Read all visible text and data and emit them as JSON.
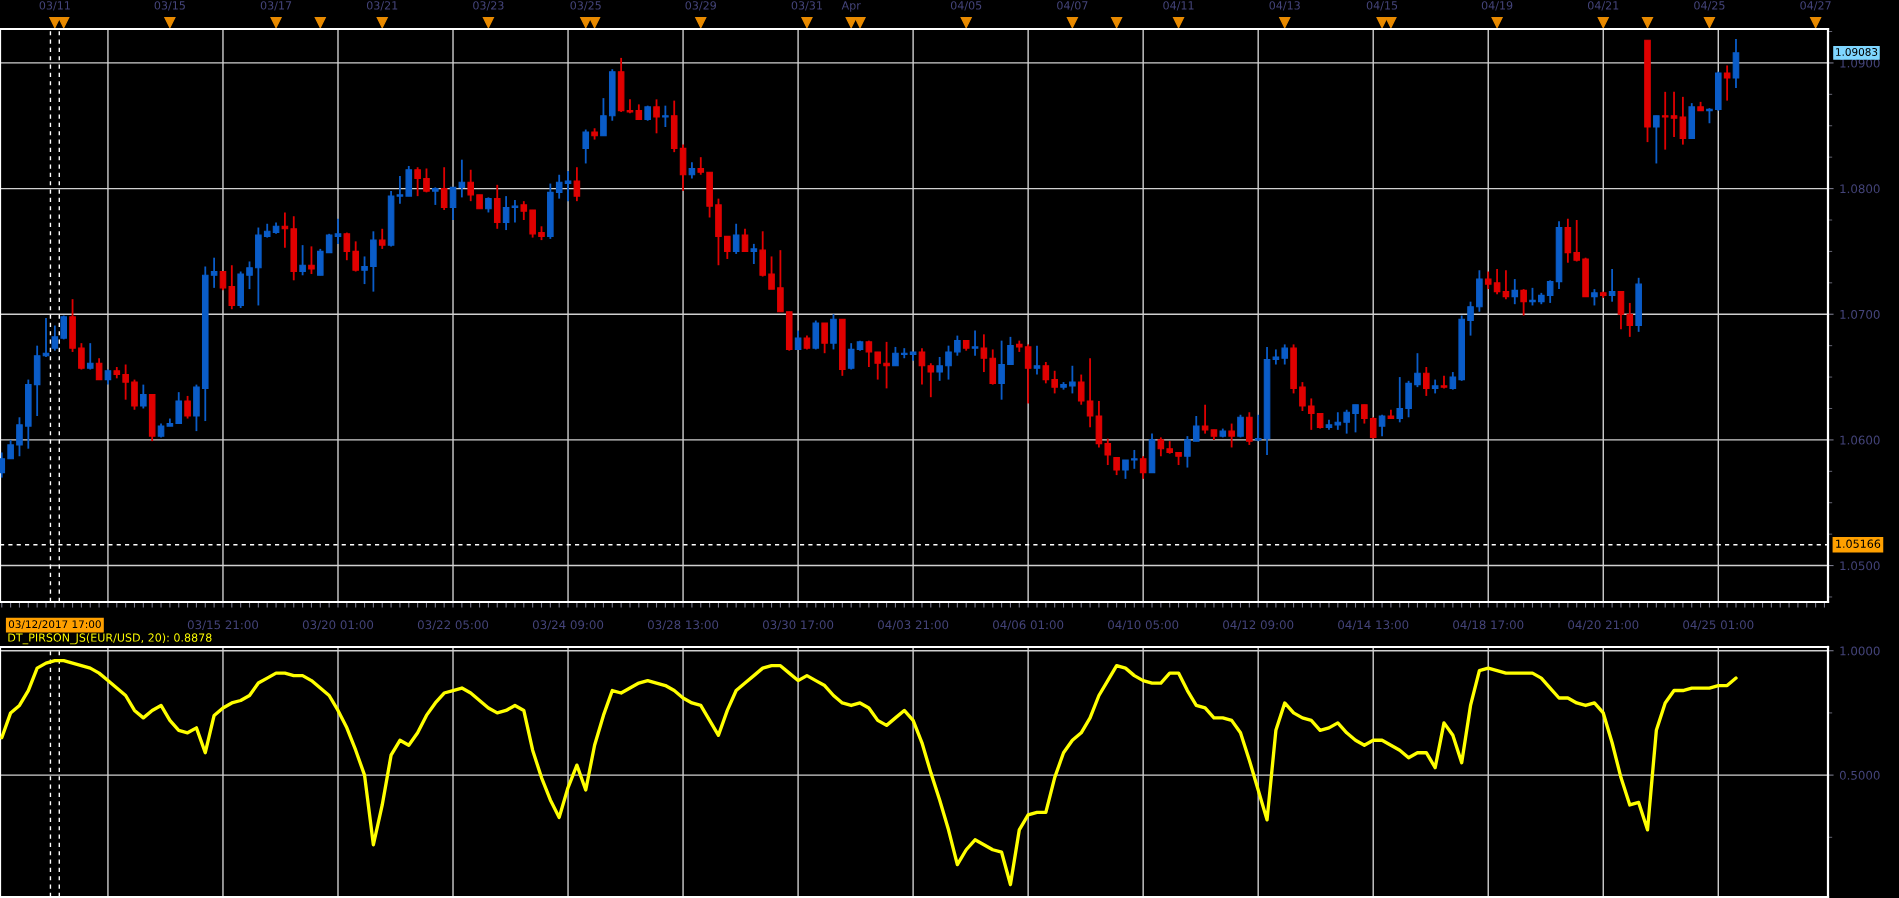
{
  "chart_data": [
    {
      "type": "other",
      "annotations": [
        "03/11",
        "03/15",
        "03/17",
        "03/21",
        "03/23",
        "03/25",
        "03/29",
        "03/31",
        "Apr",
        "04/05",
        "04/07",
        "04/11",
        "04/13",
        "04/15",
        "04/19",
        "04/21",
        "04/25",
        "04/27"
      ]
    },
    {
      "type": "candlestick",
      "categories": [
        null,
        null,
        null,
        null,
        null,
        null,
        "03/12/2017 17:00",
        null,
        null,
        null,
        null,
        null,
        null,
        null,
        null,
        null,
        null,
        null,
        null,
        null,
        null,
        null,
        null,
        null,
        null,
        "03/15 21:00",
        null,
        null,
        null,
        null,
        null,
        null,
        null,
        null,
        null,
        null,
        null,
        null,
        "03/20 01:00",
        null,
        null,
        null,
        null,
        null,
        null,
        null,
        null,
        null,
        null,
        null,
        null,
        "03/22 05:00",
        null,
        null,
        null,
        null,
        null,
        null,
        null,
        null,
        null,
        null,
        null,
        null,
        "03/24 09:00",
        null,
        null,
        null,
        null,
        null,
        null,
        null,
        null,
        null,
        null,
        null,
        null,
        "03/28 13:00",
        null,
        null,
        null,
        null,
        null,
        null,
        null,
        null,
        null,
        null,
        null,
        null,
        "03/30 17:00",
        null,
        null,
        null,
        null,
        null,
        null,
        null,
        null,
        null,
        null,
        null,
        null,
        "04/03 21:00",
        null,
        null,
        null,
        null,
        null,
        null,
        null,
        null,
        null,
        null,
        null,
        null,
        "04/06 01:00",
        null,
        null,
        null,
        null,
        null,
        null,
        null,
        null,
        null,
        null,
        null,
        null,
        "04/10 05:00",
        null,
        null,
        null,
        null,
        null,
        null,
        null,
        null,
        null,
        null,
        null,
        null,
        "04/12 09:00",
        null,
        null,
        null,
        null,
        null,
        null,
        null,
        null,
        null,
        null,
        null,
        null,
        "04/14 13:00",
        null,
        null,
        null,
        null,
        null,
        null,
        null,
        null,
        null,
        null,
        null,
        null,
        "04/18 17:00",
        null,
        null,
        null,
        null,
        null,
        null,
        null,
        null,
        null,
        null,
        null,
        null,
        "04/20 21:00",
        null,
        null,
        null,
        null,
        null,
        null,
        null,
        null,
        null,
        null,
        null,
        null,
        "04/25 01:00",
        null,
        null,
        null,
        null,
        null,
        null,
        null,
        null,
        null,
        null,
        null,
        null
      ],
      "ohlc": [
        [
          1.0574,
          1.059,
          1.057,
          1.0585
        ],
        [
          1.0585,
          1.06,
          1.0585,
          1.0596
        ],
        [
          1.0596,
          1.0618,
          1.0587,
          1.0612
        ],
        [
          1.0611,
          1.0648,
          1.0593,
          1.0644
        ],
        [
          1.0644,
          1.0675,
          1.0619,
          1.0667
        ],
        [
          1.0667,
          1.0697,
          1.0666,
          1.0669
        ],
        [
          1.0673,
          1.0691,
          1.0671,
          1.0682
        ],
        [
          1.0681,
          1.0699,
          1.068,
          1.0698
        ],
        [
          1.0698,
          1.0712,
          1.067,
          1.0673
        ],
        [
          1.0673,
          1.0677,
          1.0656,
          1.0657
        ],
        [
          1.0657,
          1.0677,
          1.0656,
          1.0661
        ],
        [
          1.0661,
          1.0665,
          1.0648,
          1.0648
        ],
        [
          1.0648,
          1.0656,
          1.0644,
          1.0655
        ],
        [
          1.0655,
          1.0658,
          1.0649,
          1.0652
        ],
        [
          1.0652,
          1.066,
          1.0632,
          1.0646
        ],
        [
          1.0646,
          1.0648,
          1.0624,
          1.0627
        ],
        [
          1.0627,
          1.0644,
          1.0625,
          1.0636
        ],
        [
          1.0636,
          1.0636,
          1.0599,
          1.0603
        ],
        [
          1.0603,
          1.0613,
          1.0602,
          1.0611
        ],
        [
          1.0611,
          1.0617,
          1.0611,
          1.0613
        ],
        [
          1.0613,
          1.0638,
          1.0613,
          1.0631
        ],
        [
          1.0631,
          1.0635,
          1.0617,
          1.0619
        ],
        [
          1.0619,
          1.0644,
          1.0607,
          1.0642
        ],
        [
          1.0641,
          1.0738,
          1.0615,
          1.0731
        ],
        [
          1.0731,
          1.0745,
          1.0721,
          1.0734
        ],
        [
          1.0734,
          1.0734,
          1.0719,
          1.0721
        ],
        [
          1.0722,
          1.0739,
          1.0704,
          1.0707
        ],
        [
          1.0707,
          1.0734,
          1.0705,
          1.0732
        ],
        [
          1.0731,
          1.0742,
          1.072,
          1.0737
        ],
        [
          1.0737,
          1.0769,
          1.0707,
          1.0763
        ],
        [
          1.0762,
          1.0772,
          1.0761,
          1.0766
        ],
        [
          1.0765,
          1.0773,
          1.0764,
          1.077
        ],
        [
          1.077,
          1.0781,
          1.0753,
          1.0768
        ],
        [
          1.0768,
          1.0778,
          1.0727,
          1.0734
        ],
        [
          1.0734,
          1.0755,
          1.0731,
          1.0739
        ],
        [
          1.0739,
          1.0754,
          1.0732,
          1.0736
        ],
        [
          1.0731,
          1.0752,
          1.0731,
          1.075
        ],
        [
          1.0749,
          1.0764,
          1.0749,
          1.0763
        ],
        [
          1.0762,
          1.0776,
          1.0756,
          1.0764
        ],
        [
          1.0764,
          1.0765,
          1.0743,
          1.075
        ],
        [
          1.075,
          1.0758,
          1.0734,
          1.0735
        ],
        [
          1.0735,
          1.0746,
          1.0724,
          1.0738
        ],
        [
          1.0738,
          1.0766,
          1.0718,
          1.0759
        ],
        [
          1.0759,
          1.0768,
          1.0752,
          1.0755
        ],
        [
          1.0755,
          1.0798,
          1.0754,
          1.0794
        ],
        [
          1.0794,
          1.081,
          1.0788,
          1.0795
        ],
        [
          1.0794,
          1.0818,
          1.0794,
          1.0815
        ],
        [
          1.0815,
          1.0817,
          1.0794,
          1.0808
        ],
        [
          1.0808,
          1.0816,
          1.0797,
          1.0798
        ],
        [
          1.0798,
          1.0801,
          1.0787,
          1.08
        ],
        [
          1.08,
          1.0817,
          1.0783,
          1.0785
        ],
        [
          1.0785,
          1.0801,
          1.0775,
          1.0801
        ],
        [
          1.0801,
          1.0823,
          1.0793,
          1.0805
        ],
        [
          1.0805,
          1.0815,
          1.079,
          1.0795
        ],
        [
          1.0795,
          1.0795,
          1.0784,
          1.0784
        ],
        [
          1.0784,
          1.0793,
          1.0781,
          1.0792
        ],
        [
          1.0792,
          1.0803,
          1.0768,
          1.0773
        ],
        [
          1.0773,
          1.0794,
          1.0767,
          1.0785
        ],
        [
          1.0785,
          1.0791,
          1.0773,
          1.0786
        ],
        [
          1.0787,
          1.079,
          1.0775,
          1.0782
        ],
        [
          1.0783,
          1.0783,
          1.0761,
          1.0764
        ],
        [
          1.0765,
          1.077,
          1.0759,
          1.0762
        ],
        [
          1.0762,
          1.0804,
          1.076,
          1.0797
        ],
        [
          1.0797,
          1.0811,
          1.0792,
          1.0805
        ],
        [
          1.0804,
          1.0814,
          1.079,
          1.0806
        ],
        [
          1.0806,
          1.0817,
          1.079,
          1.0794
        ],
        [
          1.0832,
          1.0847,
          1.082,
          1.0845
        ],
        [
          1.0845,
          1.0848,
          1.0839,
          1.0842
        ],
        [
          1.0842,
          1.0872,
          1.0842,
          1.0858
        ],
        [
          1.0858,
          1.0895,
          1.0854,
          1.0893
        ],
        [
          1.0893,
          1.0904,
          1.0861,
          1.0862
        ],
        [
          1.0862,
          1.0871,
          1.086,
          1.0861
        ],
        [
          1.0862,
          1.0867,
          1.0855,
          1.0855
        ],
        [
          1.0855,
          1.0866,
          1.0854,
          1.0865
        ],
        [
          1.0865,
          1.0871,
          1.0844,
          1.0857
        ],
        [
          1.0857,
          1.0866,
          1.0849,
          1.0858
        ],
        [
          1.0858,
          1.087,
          1.0829,
          1.0832
        ],
        [
          1.0832,
          1.0835,
          1.0798,
          1.0811
        ],
        [
          1.0811,
          1.0821,
          1.0808,
          1.0816
        ],
        [
          1.0816,
          1.0825,
          1.0811,
          1.0813
        ],
        [
          1.0813,
          1.0813,
          1.0777,
          1.0786
        ],
        [
          1.0787,
          1.0792,
          1.0739,
          1.0762
        ],
        [
          1.0762,
          1.0762,
          1.0744,
          1.075
        ],
        [
          1.075,
          1.0772,
          1.0748,
          1.0763
        ],
        [
          1.0763,
          1.0768,
          1.075,
          1.075
        ],
        [
          1.075,
          1.0756,
          1.074,
          1.0752
        ],
        [
          1.0751,
          1.0766,
          1.073,
          1.0731
        ],
        [
          1.0732,
          1.0746,
          1.072,
          1.072
        ],
        [
          1.0721,
          1.0751,
          1.0702,
          1.0702
        ],
        [
          1.0702,
          1.0702,
          1.0671,
          1.0672
        ],
        [
          1.0672,
          1.0687,
          1.0672,
          1.0681
        ],
        [
          1.0681,
          1.0683,
          1.0672,
          1.0673
        ],
        [
          1.0673,
          1.0695,
          1.0672,
          1.0693
        ],
        [
          1.0693,
          1.0693,
          1.0669,
          1.0677
        ],
        [
          1.0677,
          1.07,
          1.0672,
          1.0696
        ],
        [
          1.0696,
          1.0696,
          1.0651,
          1.0656
        ],
        [
          1.0657,
          1.0677,
          1.0656,
          1.0672
        ],
        [
          1.0672,
          1.0679,
          1.0671,
          1.0678
        ],
        [
          1.0678,
          1.0679,
          1.0658,
          1.067
        ],
        [
          1.067,
          1.067,
          1.0648,
          1.0661
        ],
        [
          1.0661,
          1.0678,
          1.0641,
          1.0659
        ],
        [
          1.0659,
          1.0674,
          1.0659,
          1.0669
        ],
        [
          1.0668,
          1.0673,
          1.0665,
          1.0669
        ],
        [
          1.0668,
          1.067,
          1.0663,
          1.067
        ],
        [
          1.067,
          1.0673,
          1.0644,
          1.0659
        ],
        [
          1.0659,
          1.0661,
          1.0634,
          1.0654
        ],
        [
          1.0654,
          1.0666,
          1.0647,
          1.0659
        ],
        [
          1.0659,
          1.0675,
          1.0648,
          1.067
        ],
        [
          1.067,
          1.0683,
          1.0667,
          1.0679
        ],
        [
          1.0679,
          1.0679,
          1.0671,
          1.0673
        ],
        [
          1.0673,
          1.0687,
          1.0667,
          1.0674
        ],
        [
          1.0673,
          1.0684,
          1.0654,
          1.0665
        ],
        [
          1.0665,
          1.0672,
          1.0644,
          1.0645
        ],
        [
          1.0645,
          1.0679,
          1.0632,
          1.066
        ],
        [
          1.066,
          1.0682,
          1.066,
          1.0675
        ],
        [
          1.0676,
          1.0679,
          1.067,
          1.0674
        ],
        [
          1.0674,
          1.0676,
          1.0629,
          1.0657
        ],
        [
          1.0657,
          1.0675,
          1.0652,
          1.0659
        ],
        [
          1.0659,
          1.0662,
          1.0645,
          1.0648
        ],
        [
          1.0648,
          1.0655,
          1.0637,
          1.0642
        ],
        [
          1.0642,
          1.0646,
          1.064,
          1.0644
        ],
        [
          1.0643,
          1.0659,
          1.0637,
          1.0646
        ],
        [
          1.0646,
          1.0652,
          1.0628,
          1.0631
        ],
        [
          1.0631,
          1.0665,
          1.061,
          1.0619
        ],
        [
          1.0619,
          1.0631,
          1.0594,
          1.0597
        ],
        [
          1.0597,
          1.0601,
          1.058,
          1.0588
        ],
        [
          1.0586,
          1.0586,
          1.0572,
          1.0576
        ],
        [
          1.0576,
          1.0584,
          1.0569,
          1.0584
        ],
        [
          1.0584,
          1.0592,
          1.0577,
          1.0585
        ],
        [
          1.0585,
          1.0587,
          1.0569,
          1.0574
        ],
        [
          1.0574,
          1.0605,
          1.0574,
          1.06
        ],
        [
          1.06,
          1.0602,
          1.0587,
          1.0593
        ],
        [
          1.0593,
          1.0599,
          1.0589,
          1.059
        ],
        [
          1.059,
          1.059,
          1.058,
          1.0587
        ],
        [
          1.0587,
          1.0603,
          1.0578,
          1.06
        ],
        [
          1.0599,
          1.0619,
          1.0599,
          1.0611
        ],
        [
          1.0611,
          1.0628,
          1.0605,
          1.0608
        ],
        [
          1.0608,
          1.0608,
          1.06,
          1.0603
        ],
        [
          1.0603,
          1.0609,
          1.0602,
          1.0607
        ],
        [
          1.0607,
          1.0613,
          1.0594,
          1.0603
        ],
        [
          1.0603,
          1.062,
          1.0602,
          1.0618
        ],
        [
          1.0618,
          1.0622,
          1.0596,
          1.0599
        ],
        [
          1.06,
          1.062,
          1.0599,
          1.0601
        ],
        [
          1.0601,
          1.0674,
          1.0588,
          1.0664
        ],
        [
          1.0664,
          1.0672,
          1.066,
          1.0666
        ],
        [
          1.0665,
          1.0676,
          1.066,
          1.0673
        ],
        [
          1.0673,
          1.0676,
          1.0637,
          1.0641
        ],
        [
          1.0642,
          1.0646,
          1.0623,
          1.0627
        ],
        [
          1.0627,
          1.0633,
          1.0608,
          1.0621
        ],
        [
          1.0621,
          1.0621,
          1.0609,
          1.061
        ],
        [
          1.061,
          1.0616,
          1.0608,
          1.0612
        ],
        [
          1.0612,
          1.0622,
          1.0608,
          1.0614
        ],
        [
          1.0614,
          1.0624,
          1.0605,
          1.0622
        ],
        [
          1.0621,
          1.0628,
          1.0606,
          1.0628
        ],
        [
          1.0628,
          1.0628,
          1.0613,
          1.0617
        ],
        [
          1.0617,
          1.0618,
          1.0601,
          1.0602
        ],
        [
          1.0611,
          1.062,
          1.0603,
          1.0619
        ],
        [
          1.0619,
          1.0624,
          1.0617,
          1.0617
        ],
        [
          1.0617,
          1.065,
          1.0614,
          1.0625
        ],
        [
          1.0625,
          1.0647,
          1.0618,
          1.0645
        ],
        [
          1.0644,
          1.0669,
          1.0642,
          1.0653
        ],
        [
          1.0653,
          1.0658,
          1.0635,
          1.0641
        ],
        [
          1.0641,
          1.0648,
          1.0637,
          1.0643
        ],
        [
          1.0643,
          1.0651,
          1.0641,
          1.0642
        ],
        [
          1.0641,
          1.0654,
          1.064,
          1.065
        ],
        [
          1.0648,
          1.0699,
          1.0647,
          1.0696
        ],
        [
          1.0695,
          1.071,
          1.0683,
          1.0706
        ],
        [
          1.0706,
          1.0735,
          1.0702,
          1.0728
        ],
        [
          1.0728,
          1.0734,
          1.072,
          1.0724
        ],
        [
          1.0725,
          1.0736,
          1.0716,
          1.0718
        ],
        [
          1.0718,
          1.0735,
          1.0712,
          1.0714
        ],
        [
          1.0714,
          1.0728,
          1.0708,
          1.0719
        ],
        [
          1.0719,
          1.072,
          1.0699,
          1.071
        ],
        [
          1.071,
          1.0721,
          1.0707,
          1.0711
        ],
        [
          1.071,
          1.0717,
          1.0708,
          1.0715
        ],
        [
          1.0715,
          1.0727,
          1.0709,
          1.0726
        ],
        [
          1.0726,
          1.0774,
          1.072,
          1.0769
        ],
        [
          1.0769,
          1.0776,
          1.0741,
          1.0749
        ],
        [
          1.0749,
          1.0775,
          1.0742,
          1.0743
        ],
        [
          1.0744,
          1.0745,
          1.0714,
          1.0714
        ],
        [
          1.0714,
          1.072,
          1.0707,
          1.0717
        ],
        [
          1.0717,
          1.0718,
          1.0713,
          1.0715
        ],
        [
          1.0715,
          1.0736,
          1.071,
          1.0718
        ],
        [
          1.0718,
          1.0718,
          1.0688,
          1.07
        ],
        [
          1.07,
          1.0709,
          1.0682,
          1.0691
        ],
        [
          1.0691,
          1.0729,
          1.0686,
          1.0724
        ],
        [
          1.0918,
          1.0918,
          1.0837,
          1.0849
        ],
        [
          1.0849,
          1.0858,
          1.082,
          1.0858
        ],
        [
          1.0858,
          1.0877,
          1.0831,
          1.0857
        ],
        [
          1.0858,
          1.0877,
          1.0841,
          1.0856
        ],
        [
          1.0857,
          1.0873,
          1.0835,
          1.084
        ],
        [
          1.084,
          1.0868,
          1.084,
          1.0865
        ],
        [
          1.0865,
          1.0869,
          1.0862,
          1.0862
        ],
        [
          1.0862,
          1.0864,
          1.0852,
          1.0863
        ],
        [
          1.0863,
          1.0893,
          1.0862,
          1.0892
        ],
        [
          1.0892,
          1.0898,
          1.087,
          1.0888
        ],
        [
          1.0888,
          1.0919,
          1.088,
          1.0908
        ],
        null,
        null,
        null,
        null,
        null,
        null,
        null,
        null,
        null,
        null
      ],
      "colors": [
        "#0a5cc8",
        "#0a5cc8",
        "#0a5cc8",
        "#0a5cc8",
        "#0a5cc8",
        "#0a5cc8",
        "#0a5cc8",
        "#0a5cc8",
        "#e00000",
        "#e00000",
        "#0a5cc8",
        "#e00000",
        "#0a5cc8",
        "#e00000",
        "#e00000",
        "#e00000",
        "#0a5cc8",
        "#e00000",
        "#0a5cc8",
        "#0a5cc8",
        "#0a5cc8",
        "#e00000",
        "#0a5cc8",
        "#0a5cc8",
        "#0a5cc8",
        "#e00000",
        "#e00000",
        "#0a5cc8",
        "#0a5cc8",
        "#0a5cc8",
        "#0a5cc8",
        "#0a5cc8",
        "#e00000",
        "#e00000",
        "#0a5cc8",
        "#e00000",
        "#0a5cc8",
        "#0a5cc8",
        "#0a5cc8",
        "#e00000",
        "#e00000",
        "#0a5cc8",
        "#0a5cc8",
        "#e00000",
        "#0a5cc8",
        "#0a5cc8",
        "#0a5cc8",
        "#e00000",
        "#e00000",
        "#0a5cc8",
        "#e00000",
        "#0a5cc8",
        "#0a5cc8",
        "#e00000",
        "#e00000",
        "#0a5cc8",
        "#e00000",
        "#0a5cc8",
        "#0a5cc8",
        "#e00000",
        "#e00000",
        "#e00000",
        "#0a5cc8",
        "#0a5cc8",
        "#0a5cc8",
        "#e00000",
        "#0a5cc8",
        "#e00000",
        "#0a5cc8",
        "#0a5cc8",
        "#e00000",
        "#e00000",
        "#e00000",
        "#0a5cc8",
        "#e00000",
        "#0a5cc8",
        "#e00000",
        "#e00000",
        "#0a5cc8",
        "#e00000",
        "#e00000",
        "#e00000",
        "#e00000",
        "#0a5cc8",
        "#e00000",
        "#0a5cc8",
        "#e00000",
        "#e00000",
        "#e00000",
        "#e00000",
        "#0a5cc8",
        "#e00000",
        "#0a5cc8",
        "#e00000",
        "#0a5cc8",
        "#e00000",
        "#0a5cc8",
        "#0a5cc8",
        "#e00000",
        "#e00000",
        "#e00000",
        "#0a5cc8",
        "#0a5cc8",
        "#0a5cc8",
        "#e00000",
        "#e00000",
        "#0a5cc8",
        "#0a5cc8",
        "#0a5cc8",
        "#e00000",
        "#0a5cc8",
        "#e00000",
        "#e00000",
        "#0a5cc8",
        "#0a5cc8",
        "#e00000",
        "#e00000",
        "#0a5cc8",
        "#e00000",
        "#e00000",
        "#0a5cc8",
        "#0a5cc8",
        "#e00000",
        "#e00000",
        "#e00000",
        "#e00000",
        "#e00000",
        "#0a5cc8",
        "#0a5cc8",
        "#e00000",
        "#0a5cc8",
        "#e00000",
        "#e00000",
        "#e00000",
        "#0a5cc8",
        "#0a5cc8",
        "#e00000",
        "#e00000",
        "#0a5cc8",
        "#e00000",
        "#0a5cc8",
        "#e00000",
        "#0a5cc8",
        "#0a5cc8",
        "#0a5cc8",
        "#0a5cc8",
        "#e00000",
        "#e00000",
        "#e00000",
        "#e00000",
        "#0a5cc8",
        "#0a5cc8",
        "#0a5cc8",
        "#0a5cc8",
        "#e00000",
        "#e00000",
        "#0a5cc8",
        "#e00000",
        "#0a5cc8",
        "#0a5cc8",
        "#0a5cc8",
        "#e00000",
        "#0a5cc8",
        "#e00000",
        "#0a5cc8",
        "#0a5cc8",
        "#0a5cc8",
        "#0a5cc8",
        "#e00000",
        "#e00000",
        "#e00000",
        "#0a5cc8",
        "#e00000",
        "#0a5cc8",
        "#0a5cc8",
        "#0a5cc8",
        "#0a5cc8",
        "#e00000",
        "#e00000",
        "#e00000",
        "#0a5cc8",
        "#e00000",
        "#0a5cc8",
        "#e00000",
        "#e00000",
        "#0a5cc8",
        "#e00000",
        "#0a5cc8",
        "#e00000",
        "#e00000",
        "#e00000",
        "#0a5cc8",
        "#e00000",
        "#0a5cc8",
        "#0a5cc8",
        "#e00000",
        "#0a5cc8",
        null,
        null,
        null,
        null,
        null,
        null,
        null,
        null,
        null,
        null
      ],
      "ylim": [
        1.0471,
        1.0927
      ],
      "yticks": [
        {
          "value": 1.05,
          "label": "1.0500"
        },
        {
          "value": 1.06,
          "label": "1.0600"
        },
        {
          "value": 1.07,
          "label": "1.0700"
        },
        {
          "value": 1.08,
          "label": "1.0800"
        },
        {
          "value": 1.09,
          "label": "1.0900"
        }
      ],
      "ref_lines": [
        {
          "axis": "y",
          "value": 1.05166,
          "line_style": "dashed",
          "color": "#ffffff",
          "label": "1.05166"
        }
      ],
      "annotations": [
        "1.09083"
      ],
      "grid": true
    },
    {
      "type": "line",
      "title": "DT_PIRSON_JS(EUR/USD, 20): 0.8878",
      "categories": [
        null,
        null,
        null,
        null,
        null,
        null,
        null,
        null,
        null,
        null,
        null,
        null,
        null,
        null,
        null,
        null,
        null,
        null,
        null,
        null,
        null,
        null,
        null,
        null,
        null,
        null,
        null,
        null,
        null,
        null,
        null,
        null,
        null,
        null,
        null,
        null,
        null,
        null,
        null,
        null,
        null,
        null,
        null,
        null,
        null,
        null,
        null,
        null,
        null,
        null,
        null,
        null,
        null,
        null,
        null,
        null,
        null,
        null,
        null,
        null,
        null,
        null,
        null,
        null,
        null,
        null,
        null,
        null,
        null,
        null,
        null,
        null,
        null,
        null,
        null,
        null,
        null,
        null,
        null,
        null,
        null,
        null,
        null,
        null,
        null,
        null,
        null,
        null,
        null,
        null,
        null,
        null,
        null,
        null,
        null,
        null,
        null,
        null,
        null,
        null,
        null,
        null,
        null,
        null,
        null,
        null,
        null,
        null,
        null,
        null,
        null,
        null,
        null,
        null,
        null,
        null,
        null,
        null,
        null,
        null,
        null,
        null,
        null,
        null,
        null,
        null,
        null,
        null,
        null,
        null,
        null,
        null,
        null,
        null,
        null,
        null,
        null,
        null,
        null,
        null,
        null,
        null,
        null,
        null,
        null,
        null,
        null,
        null,
        null,
        null,
        null,
        null,
        null,
        null,
        null,
        null,
        null,
        null,
        null,
        null,
        null,
        null,
        null,
        null,
        null,
        null,
        null,
        null,
        null,
        null,
        null,
        null,
        null,
        null,
        null,
        null,
        null,
        null,
        null,
        null,
        null,
        null,
        null,
        null,
        null,
        null,
        null,
        null,
        null,
        null,
        null,
        null,
        null,
        null,
        null,
        null,
        null,
        null,
        null,
        null,
        null,
        null,
        null,
        null,
        null,
        null,
        null
      ],
      "series": [
        {
          "color": "#ffff00",
          "values": [
            0.65,
            0.75,
            0.78,
            0.84,
            0.93,
            0.95,
            0.96,
            0.96,
            0.95,
            0.94,
            0.93,
            0.91,
            0.88,
            0.85,
            0.82,
            0.76,
            0.73,
            0.76,
            0.78,
            0.72,
            0.68,
            0.67,
            0.69,
            0.59,
            0.74,
            0.77,
            0.79,
            0.8,
            0.82,
            0.87,
            0.89,
            0.91,
            0.91,
            0.9,
            0.9,
            0.88,
            0.85,
            0.82,
            0.76,
            0.69,
            0.6,
            0.5,
            0.22,
            0.38,
            0.58,
            0.64,
            0.62,
            0.67,
            0.74,
            0.79,
            0.83,
            0.84,
            0.85,
            0.83,
            0.8,
            0.77,
            0.75,
            0.76,
            0.78,
            0.76,
            0.6,
            0.49,
            0.4,
            0.33,
            0.45,
            0.54,
            0.44,
            0.62,
            0.74,
            0.84,
            0.83,
            0.85,
            0.87,
            0.88,
            0.87,
            0.86,
            0.84,
            0.81,
            0.79,
            0.78,
            0.72,
            0.66,
            0.76,
            0.84,
            0.87,
            0.9,
            0.93,
            0.94,
            0.94,
            0.91,
            0.88,
            0.9,
            0.88,
            0.86,
            0.82,
            0.79,
            0.78,
            0.79,
            0.77,
            0.72,
            0.7,
            0.73,
            0.76,
            0.72,
            0.63,
            0.51,
            0.4,
            0.28,
            0.14,
            0.2,
            0.24,
            0.22,
            0.2,
            0.19,
            0.06,
            0.28,
            0.34,
            0.35,
            0.35,
            0.49,
            0.59,
            0.64,
            0.67,
            0.73,
            0.82,
            0.88,
            0.94,
            0.93,
            0.9,
            0.88,
            0.87,
            0.87,
            0.91,
            0.91,
            0.84,
            0.78,
            0.77,
            0.73,
            0.73,
            0.72,
            0.67,
            0.56,
            0.44,
            0.32,
            0.68,
            0.79,
            0.75,
            0.73,
            0.72,
            0.68,
            0.69,
            0.71,
            0.67,
            0.64,
            0.62,
            0.64,
            0.64,
            0.62,
            0.6,
            0.57,
            0.59,
            0.59,
            0.53,
            0.71,
            0.66,
            0.55,
            0.78,
            0.92,
            0.93,
            0.92,
            0.91,
            0.91,
            0.91,
            0.91,
            0.89,
            0.85,
            0.81,
            0.81,
            0.79,
            0.78,
            0.79,
            0.75,
            0.63,
            0.49,
            0.38,
            0.39,
            0.28,
            0.68,
            0.79,
            0.84,
            0.84,
            0.85,
            0.85,
            0.85,
            0.86,
            0.86,
            0.89,
            null,
            null,
            null,
            null,
            null,
            null,
            null,
            null,
            null,
            null
          ]
        }
      ],
      "ylim": [
        0.01,
        1.015
      ],
      "yticks": [
        {
          "value": 0.5,
          "label": "0.5000"
        },
        {
          "value": 1.0,
          "label": "1.0000"
        }
      ],
      "grid": true
    }
  ]
}
